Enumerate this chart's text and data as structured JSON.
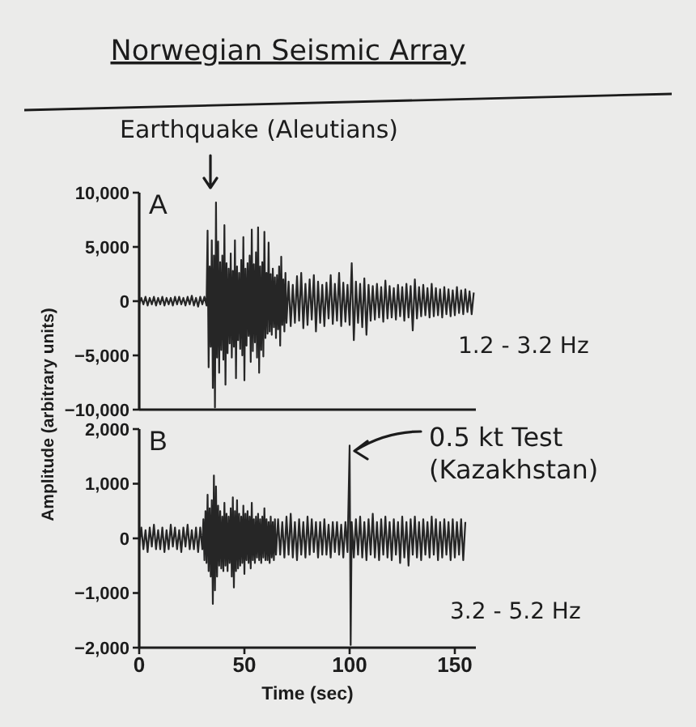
{
  "chart_data": [
    {
      "type": "line",
      "title": "Norwegian Seismic Array",
      "ylabel": "Amplitude (arbitrary units)",
      "annotations": [
        "A",
        "Earthquake (Aleutians)",
        "1.2 - 3.2 Hz"
      ],
      "x": [
        0,
        1,
        2,
        3,
        4,
        5,
        6,
        7,
        8,
        9,
        10,
        11,
        12,
        13,
        14,
        15,
        16,
        17,
        18,
        19,
        20,
        21,
        22,
        23,
        24,
        25,
        26,
        27,
        28,
        29,
        30,
        31,
        32,
        32.5,
        33,
        33.5,
        34,
        34.5,
        35,
        35.5,
        36,
        36.5,
        37,
        37.5,
        38,
        38.5,
        39,
        39.5,
        40,
        40.5,
        41,
        41.5,
        42,
        42.5,
        43,
        43.5,
        44,
        44.5,
        45,
        45.5,
        46,
        46.5,
        47,
        47.5,
        48,
        48.5,
        49,
        49.5,
        50,
        50.5,
        51,
        51.5,
        52,
        52.5,
        53,
        53.5,
        54,
        54.5,
        55,
        55.5,
        56,
        56.5,
        57,
        57.5,
        58,
        58.5,
        59,
        59.5,
        60,
        60.5,
        61,
        61.5,
        62,
        62.5,
        63,
        63.5,
        64,
        64.5,
        65,
        65.5,
        66,
        66.5,
        67,
        67.5,
        68,
        68.5,
        69,
        69.5,
        70,
        71,
        72,
        73,
        74,
        75,
        76,
        77,
        78,
        79,
        80,
        81,
        82,
        83,
        84,
        85,
        86,
        87,
        88,
        89,
        90,
        91,
        92,
        93,
        94,
        95,
        96,
        97,
        98,
        99,
        100,
        101,
        102,
        103,
        104,
        105,
        106,
        107,
        108,
        109,
        110,
        111,
        112,
        113,
        114,
        115,
        116,
        117,
        118,
        119,
        120,
        121,
        122,
        123,
        124,
        125,
        126,
        127,
        128,
        129,
        130,
        131,
        132,
        133,
        134,
        135,
        136,
        137,
        138,
        139,
        140,
        141,
        142,
        143,
        144,
        145,
        146,
        147,
        148,
        149,
        150,
        151,
        152,
        153,
        154,
        155,
        156,
        157,
        158,
        159
      ],
      "series": [
        {
          "color": "#262626",
          "values": [
            -300,
            300,
            -300,
            400,
            -400,
            300,
            -300,
            400,
            -400,
            300,
            -300,
            400,
            -400,
            300,
            -300,
            300,
            -400,
            400,
            -300,
            400,
            -300,
            300,
            -400,
            400,
            -300,
            500,
            -400,
            300,
            -500,
            400,
            -300,
            400,
            -400,
            6500,
            -6100,
            3200,
            -4200,
            5600,
            -8000,
            4200,
            -9800,
            9100,
            -5200,
            5500,
            -6600,
            3600,
            -4500,
            4200,
            -5400,
            7000,
            -7700,
            3500,
            -4800,
            3000,
            -3900,
            4400,
            -5200,
            2800,
            -4200,
            5600,
            -7100,
            3200,
            -3600,
            2600,
            -4400,
            3800,
            -5000,
            5900,
            -7300,
            3000,
            -4100,
            3500,
            -3200,
            4200,
            -5600,
            6600,
            -4600,
            3400,
            -3800,
            4500,
            -5200,
            6800,
            -6600,
            3200,
            -4500,
            3600,
            -5100,
            6400,
            -3400,
            2600,
            -3000,
            5400,
            -2800,
            2500,
            -3100,
            3000,
            -2400,
            2200,
            -3400,
            2400,
            -2600,
            3200,
            -4100,
            4100,
            -2200,
            2000,
            -2800,
            2600,
            -2000,
            1800,
            -2300,
            1500,
            -2000,
            2300,
            -1800,
            2600,
            -2500,
            1600,
            -2200,
            2000,
            -1700,
            2400,
            -2800,
            1800,
            -2000,
            1500,
            -2300,
            1700,
            -1600,
            2400,
            -2100,
            1600,
            -1800,
            2600,
            -2300,
            1700,
            -1900,
            1500,
            -2200,
            3500,
            -3600,
            1800,
            -2000,
            1600,
            -2400,
            2100,
            -3100,
            1500,
            -1800,
            1400,
            -1700,
            1600,
            -1500,
            1300,
            -1900,
            1900,
            -1600,
            1400,
            -1500,
            1200,
            -1700,
            1500,
            -1400,
            1300,
            -1800,
            1600,
            -1500,
            1400,
            -2700,
            2000,
            -1600,
            1300,
            -1400,
            1500,
            -1300,
            1200,
            -1500,
            1600,
            -1400,
            1200,
            -1300,
            1100,
            -1500,
            1300,
            -1200,
            1100,
            -1400,
            1000,
            -1300,
            1300,
            -1100,
            1000,
            -1200,
            1100,
            -1000,
            900,
            -1200,
            800
          ]
        }
      ],
      "xlim": [
        0,
        160
      ],
      "xticks": [
        0,
        50,
        100,
        150
      ],
      "ylim": [
        -10000,
        10000
      ],
      "yticks": [
        {
          "value": 10000,
          "label": "10,000"
        },
        {
          "value": 5000,
          "label": "5,000"
        },
        0,
        {
          "value": -5000,
          "label": "−5,000"
        },
        {
          "value": -10000,
          "label": "−10,000"
        }
      ],
      "tick_labels": "y"
    },
    {
      "type": "line",
      "xlabel": "Time (sec)",
      "annotations": [
        "B",
        {
          "text": "0.5 kt Test\n(Kazakhstan)",
          "x": 100,
          "y": 1600
        },
        "3.2 - 5.2 Hz"
      ],
      "x": [
        0,
        1,
        2,
        3,
        4,
        5,
        6,
        7,
        8,
        9,
        10,
        11,
        12,
        13,
        14,
        15,
        16,
        17,
        18,
        19,
        20,
        21,
        22,
        23,
        24,
        25,
        26,
        27,
        28,
        29,
        30,
        30.5,
        31,
        31.5,
        32,
        32.5,
        33,
        33.5,
        34,
        34.5,
        35,
        35.5,
        36,
        36.5,
        37,
        37.5,
        38,
        38.5,
        39,
        39.5,
        40,
        40.5,
        41,
        41.5,
        42,
        42.5,
        43,
        43.5,
        44,
        44.5,
        45,
        45.5,
        46,
        46.5,
        47,
        47.5,
        48,
        48.5,
        49,
        49.5,
        50,
        50.5,
        51,
        51.5,
        52,
        52.5,
        53,
        53.5,
        54,
        54.5,
        55,
        55.5,
        56,
        56.5,
        57,
        57.5,
        58,
        58.5,
        59,
        59.5,
        60,
        60.5,
        61,
        61.5,
        62,
        62.5,
        63,
        63.5,
        64,
        64.5,
        65,
        66,
        67,
        68,
        69,
        70,
        71,
        72,
        73,
        74,
        75,
        76,
        77,
        78,
        79,
        80,
        81,
        82,
        83,
        84,
        85,
        86,
        87,
        88,
        89,
        90,
        91,
        92,
        93,
        94,
        95,
        96,
        97,
        98,
        99,
        100,
        100.5,
        101,
        102,
        103,
        104,
        105,
        106,
        107,
        108,
        109,
        110,
        111,
        112,
        113,
        114,
        115,
        116,
        117,
        118,
        119,
        120,
        121,
        122,
        123,
        124,
        125,
        126,
        127,
        128,
        129,
        130,
        131,
        132,
        133,
        134,
        135,
        136,
        137,
        138,
        139,
        140,
        141,
        142,
        143,
        144,
        145,
        146,
        147,
        148,
        149,
        150,
        151,
        152,
        153,
        154,
        155
      ],
      "series": [
        {
          "color": "#262626",
          "values": [
            -150,
            200,
            -200,
            150,
            -250,
            200,
            -150,
            250,
            -200,
            150,
            -200,
            200,
            -250,
            150,
            -200,
            250,
            -150,
            200,
            -200,
            150,
            -250,
            200,
            -150,
            250,
            -200,
            150,
            -200,
            200,
            -250,
            200,
            -200,
            350,
            -400,
            500,
            -450,
            800,
            -600,
            550,
            -700,
            700,
            -1200,
            1150,
            -950,
            950,
            -700,
            600,
            -500,
            500,
            -550,
            400,
            -600,
            650,
            -500,
            450,
            -600,
            400,
            -450,
            550,
            -700,
            750,
            -900,
            500,
            -600,
            700,
            -550,
            450,
            -500,
            400,
            -450,
            600,
            -650,
            450,
            -400,
            500,
            -450,
            400,
            -550,
            650,
            -400,
            350,
            -450,
            400,
            -350,
            450,
            -400,
            350,
            -450,
            400,
            -350,
            550,
            -400,
            350,
            -400,
            300,
            -450,
            400,
            -350,
            300,
            -400,
            350,
            -300,
            350,
            -300,
            300,
            -350,
            400,
            -300,
            450,
            -350,
            300,
            -400,
            350,
            -300,
            300,
            -350,
            400,
            -300,
            350,
            -250,
            300,
            -350,
            300,
            -300,
            350,
            -300,
            250,
            -350,
            300,
            -250,
            300,
            -300,
            250,
            -350,
            300,
            -250,
            1700,
            -1950,
            300,
            -350,
            350,
            -300,
            400,
            -350,
            300,
            -400,
            350,
            -300,
            450,
            -350,
            300,
            -400,
            350,
            -300,
            400,
            -350,
            300,
            -400,
            350,
            -300,
            300,
            -450,
            400,
            -350,
            300,
            -500,
            350,
            -300,
            400,
            -350,
            300,
            -400,
            350,
            -300,
            300,
            -350,
            400,
            -300,
            350,
            -400,
            300,
            -350,
            350,
            -300,
            300,
            -400,
            350,
            -350,
            300,
            -300,
            350,
            -400,
            300
          ]
        }
      ],
      "xlim": [
        0,
        160
      ],
      "xticks": [
        0,
        50,
        100,
        150
      ],
      "ylim": [
        -2000,
        2000
      ],
      "yticks": [
        {
          "value": 2000,
          "label": "2,000"
        },
        {
          "value": 1000,
          "label": "1,000"
        },
        0,
        {
          "value": -1000,
          "label": "−1,000"
        },
        {
          "value": -2000,
          "label": "−2,000"
        }
      ]
    }
  ]
}
